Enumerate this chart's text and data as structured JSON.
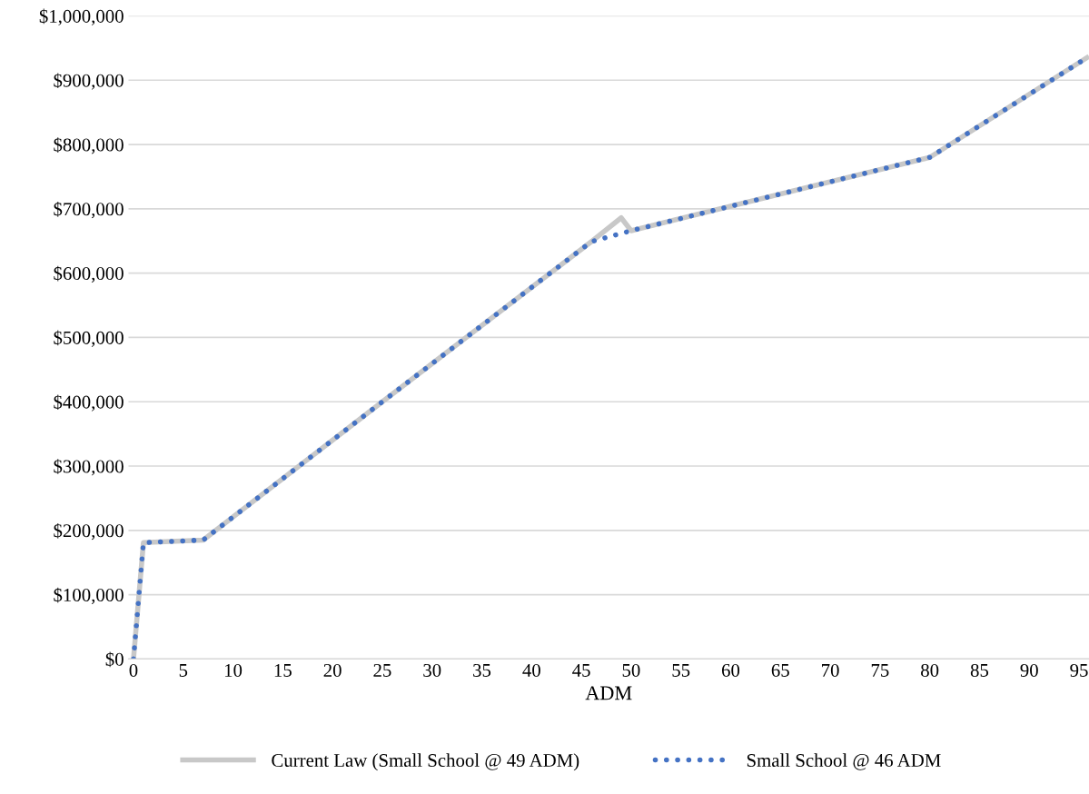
{
  "chart_data": {
    "type": "line",
    "xlabel": "ADM",
    "xlim": [
      -0.5,
      96
    ],
    "xticks": [
      0,
      5,
      10,
      15,
      20,
      25,
      30,
      35,
      40,
      45,
      50,
      55,
      60,
      65,
      70,
      75,
      80,
      85,
      90,
      95
    ],
    "ylim": [
      0,
      1000000
    ],
    "yticks": [
      {
        "value": 0,
        "label": "$0"
      },
      {
        "value": 100000,
        "label": "$100,000"
      },
      {
        "value": 200000,
        "label": "$200,000"
      },
      {
        "value": 300000,
        "label": "$300,000"
      },
      {
        "value": 400000,
        "label": "$400,000"
      },
      {
        "value": 500000,
        "label": "$500,000"
      },
      {
        "value": 600000,
        "label": "$600,000"
      },
      {
        "value": 700000,
        "label": "$700,000"
      },
      {
        "value": 800000,
        "label": "$800,000"
      },
      {
        "value": 900000,
        "label": "$900,000"
      },
      {
        "value": 1000000,
        "label": "$1,000,000"
      }
    ],
    "grid": "y",
    "legend": "bottom",
    "series": [
      {
        "name": "Current Law (Small School @ 49 ADM)",
        "color": "#c8c8c8",
        "line_style": "solid",
        "x": [
          0,
          1,
          7,
          25,
          46,
          49,
          50,
          80,
          96
        ],
        "values": [
          0,
          181000,
          185000,
          400000,
          649000,
          686000,
          666000,
          780000,
          937000
        ]
      },
      {
        "name": "Small School @ 46 ADM",
        "color": "#4472c4",
        "line_style": "dotted",
        "x": [
          0,
          1,
          7,
          25,
          46,
          50,
          80,
          96
        ],
        "values": [
          0,
          181000,
          185000,
          400000,
          649000,
          666000,
          780000,
          937000
        ]
      }
    ]
  }
}
